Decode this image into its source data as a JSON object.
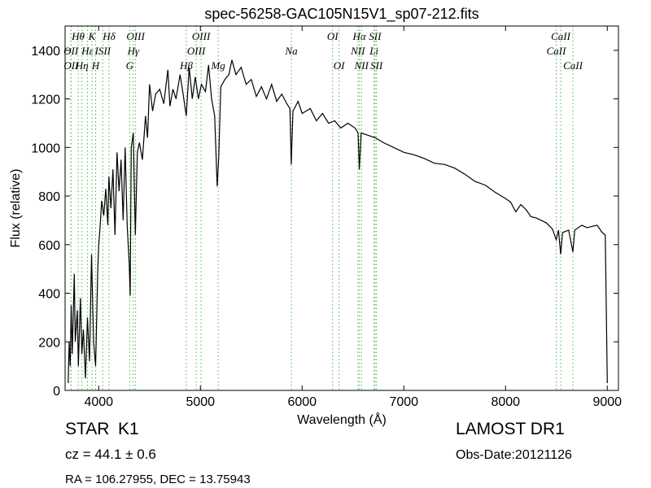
{
  "chart_data": {
    "type": "line",
    "title": "spec-56258-GAC105N15V1_sp07-212.fits",
    "x_label": "Wavelength (Å)",
    "y_label": "Flux (relative)",
    "xlim": [
      3670,
      9110
    ],
    "ylim": [
      0,
      1500
    ],
    "xticks": [
      4000,
      5000,
      6000,
      7000,
      8000,
      9000
    ],
    "yticks": [
      0,
      200,
      400,
      600,
      800,
      1000,
      1200,
      1400
    ],
    "color": "#000000",
    "line_marker_color": "#44bb44",
    "x": [
      3700,
      3710,
      3720,
      3730,
      3740,
      3760,
      3770,
      3790,
      3800,
      3820,
      3835,
      3850,
      3870,
      3890,
      3910,
      3930,
      3950,
      3970,
      3990,
      4000,
      4010,
      4030,
      4050,
      4070,
      4090,
      4100,
      4120,
      4140,
      4160,
      4180,
      4200,
      4220,
      4240,
      4260,
      4280,
      4300,
      4310,
      4320,
      4340,
      4360,
      4380,
      4400,
      4430,
      4460,
      4480,
      4500,
      4530,
      4560,
      4600,
      4640,
      4680,
      4700,
      4730,
      4760,
      4800,
      4830,
      4861,
      4890,
      4920,
      4950,
      4980,
      5010,
      5050,
      5080,
      5110,
      5140,
      5165,
      5180,
      5200,
      5240,
      5280,
      5310,
      5350,
      5400,
      5450,
      5500,
      5550,
      5600,
      5650,
      5700,
      5750,
      5800,
      5850,
      5880,
      5893,
      5910,
      5960,
      6000,
      6080,
      6140,
      6200,
      6260,
      6320,
      6380,
      6450,
      6520,
      6550,
      6563,
      6580,
      6650,
      6720,
      6800,
      6900,
      7000,
      7100,
      7200,
      7300,
      7400,
      7500,
      7600,
      7700,
      7800,
      7900,
      8000,
      8050,
      8100,
      8150,
      8200,
      8250,
      8300,
      8350,
      8400,
      8460,
      8498,
      8520,
      8542,
      8560,
      8620,
      8662,
      8680,
      8750,
      8800,
      8850,
      8900,
      8950,
      8980,
      9000
    ],
    "values": [
      30,
      200,
      100,
      350,
      150,
      480,
      200,
      330,
      100,
      380,
      150,
      250,
      50,
      300,
      120,
      560,
      200,
      100,
      480,
      600,
      650,
      780,
      720,
      830,
      680,
      880,
      750,
      910,
      640,
      980,
      820,
      950,
      700,
      1000,
      680,
      520,
      390,
      1000,
      1060,
      640,
      980,
      1020,
      950,
      1130,
      1040,
      1260,
      1150,
      1220,
      1240,
      1180,
      1320,
      1170,
      1240,
      1200,
      1300,
      1220,
      1130,
      1330,
      1200,
      1290,
      1200,
      1260,
      1230,
      1340,
      1200,
      1130,
      840,
      960,
      1250,
      1280,
      1300,
      1360,
      1300,
      1330,
      1260,
      1280,
      1210,
      1250,
      1200,
      1260,
      1190,
      1220,
      1180,
      1160,
      930,
      1150,
      1190,
      1140,
      1160,
      1110,
      1140,
      1100,
      1110,
      1080,
      1100,
      1080,
      1060,
      910,
      1060,
      1050,
      1040,
      1020,
      1000,
      980,
      970,
      955,
      935,
      930,
      915,
      890,
      860,
      845,
      815,
      790,
      775,
      735,
      765,
      745,
      715,
      710,
      700,
      690,
      665,
      620,
      660,
      560,
      650,
      660,
      570,
      660,
      680,
      670,
      675,
      680,
      650,
      640,
      30
    ],
    "line_labels": {
      "top": [
        {
          "label": "Hθ",
          "wavelength": 3798
        },
        {
          "label": "K",
          "wavelength": 3934
        },
        {
          "label": "Hδ",
          "wavelength": 4102
        },
        {
          "label": "OIII",
          "wavelength": 4363
        },
        {
          "label": "OIII",
          "wavelength": 5007
        },
        {
          "label": "OI",
          "wavelength": 6300
        },
        {
          "label": "Hα",
          "wavelength": 6563
        },
        {
          "label": "SII",
          "wavelength": 6717
        },
        {
          "label": "CaII",
          "wavelength": 8542
        }
      ],
      "middle": [
        {
          "label": "OII",
          "wavelength": 3727
        },
        {
          "label": "Hε",
          "wavelength": 3889
        },
        {
          "label": "ISII",
          "wavelength": 4040
        },
        {
          "label": "Hγ",
          "wavelength": 4341
        },
        {
          "label": "OIII",
          "wavelength": 4959
        },
        {
          "label": "Na",
          "wavelength": 5894
        },
        {
          "label": "NII",
          "wavelength": 6548
        },
        {
          "label": "Li",
          "wavelength": 6707
        },
        {
          "label": "CaII",
          "wavelength": 8498
        }
      ],
      "bottom": [
        {
          "label": "OII",
          "wavelength": 3729
        },
        {
          "label": "Hη",
          "wavelength": 3835
        },
        {
          "label": "H",
          "wavelength": 3970
        },
        {
          "label": "G",
          "wavelength": 4305
        },
        {
          "label": "Hβ",
          "wavelength": 4861
        },
        {
          "label": "Mg",
          "wavelength": 5175
        },
        {
          "label": "OI",
          "wavelength": 6363
        },
        {
          "label": "NII",
          "wavelength": 6583
        },
        {
          "label": "SII",
          "wavelength": 6731
        },
        {
          "label": "CaII",
          "wavelength": 8662
        }
      ]
    }
  },
  "info": {
    "object_class": "STAR",
    "subclass": "K1",
    "redshift": "cz = 44.1 ± 0.6",
    "coordinates": "RA = 106.27955, DEC = 13.75943",
    "survey": "LAMOST DR1",
    "obs_date": "Obs-Date:20121126"
  }
}
